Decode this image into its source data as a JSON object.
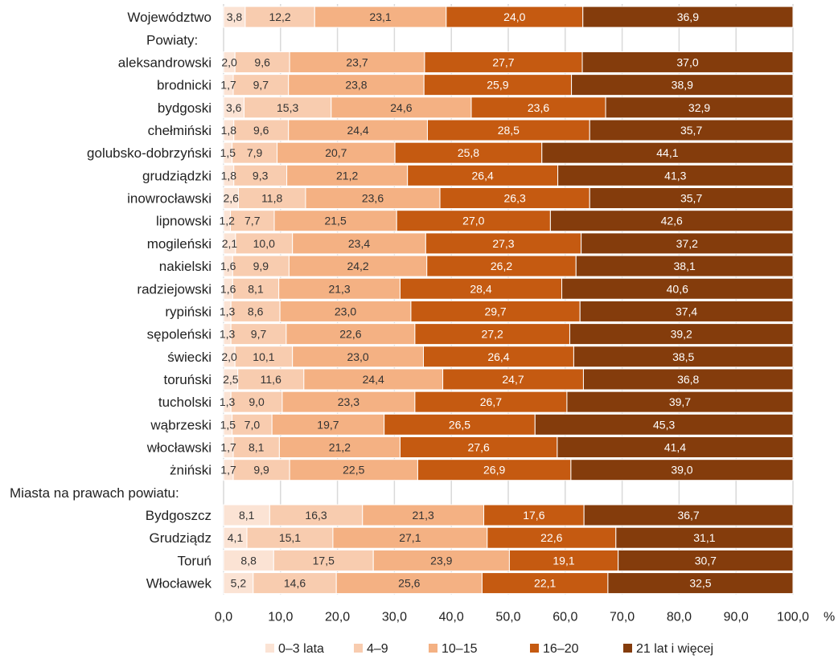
{
  "chart_data": {
    "type": "bar",
    "orientation": "horizontal",
    "stacked": true,
    "unit": "%",
    "xlim": [
      0,
      100
    ],
    "x_ticks": [
      "0,0",
      "10,0",
      "20,0",
      "30,0",
      "40,0",
      "50,0",
      "60,0",
      "70,0",
      "80,0",
      "90,0",
      "100,0"
    ],
    "grid": true,
    "legend_position": "bottom",
    "categories": [
      "Województwo",
      "Powiaty:",
      "aleksandrowski",
      "brodnicki",
      "bydgoski",
      "chełmiński",
      "golubsko-dobrzyński",
      "grudziądzki",
      "inowrocławski",
      "lipnowski",
      "mogileński",
      "nakielski",
      "radziejowski",
      "rypiński",
      "sępoleński",
      "świecki",
      "toruński",
      "tucholski",
      "wąbrzeski",
      "włocławski",
      "żniński",
      "Miasta na prawach powiatu:",
      "Bydgoszcz",
      "Grudziądz",
      "Toruń",
      "Włocławek"
    ],
    "category_alignment": [
      "right",
      "left",
      "right",
      "right",
      "right",
      "right",
      "right",
      "right",
      "right",
      "right",
      "right",
      "right",
      "right",
      "right",
      "right",
      "right",
      "right",
      "right",
      "right",
      "right",
      "right",
      "left",
      "right",
      "right",
      "right",
      "right"
    ],
    "series": [
      {
        "name": "0–3 lata",
        "color": "#fbe3d4",
        "values": [
          3.8,
          null,
          2.0,
          1.7,
          3.6,
          1.8,
          1.5,
          1.8,
          2.6,
          1.2,
          2.1,
          1.6,
          1.6,
          1.3,
          1.3,
          2.0,
          2.5,
          1.3,
          1.5,
          1.7,
          1.7,
          null,
          8.1,
          4.1,
          8.8,
          5.2
        ],
        "labels": [
          "3,8",
          "",
          "2,0",
          "1,7",
          "3,6",
          "1,8",
          "1,5",
          "1,8",
          "2,6",
          "1,2",
          "2,1",
          "1,6",
          "1,6",
          "1,3",
          "1,3",
          "2,0",
          "2,5",
          "1,3",
          "1,5",
          "1,7",
          "1,7",
          "",
          "8,1",
          "4,1",
          "8,8",
          "5,2"
        ]
      },
      {
        "name": "4–9",
        "color": "#f8ccaf",
        "values": [
          12.2,
          null,
          9.6,
          9.7,
          15.3,
          9.6,
          7.9,
          9.3,
          11.8,
          7.7,
          10.0,
          9.9,
          8.1,
          8.6,
          9.7,
          10.1,
          11.6,
          9.0,
          7.0,
          8.1,
          9.9,
          null,
          16.3,
          15.1,
          17.5,
          14.6
        ],
        "labels": [
          "12,2",
          "",
          "9,6",
          "9,7",
          "15,3",
          "9,6",
          "7,9",
          "9,3",
          "11,8",
          "7,7",
          "10,0",
          "9,9",
          "8,1",
          "8,6",
          "9,7",
          "10,1",
          "11,6",
          "9,0",
          "7,0",
          "8,1",
          "9,9",
          "",
          "16,3",
          "15,1",
          "17,5",
          "14,6"
        ]
      },
      {
        "name": "10–15",
        "color": "#f4b183",
        "values": [
          23.1,
          null,
          23.7,
          23.8,
          24.6,
          24.4,
          20.7,
          21.2,
          23.6,
          21.5,
          23.4,
          24.2,
          21.3,
          23.0,
          22.6,
          23.0,
          24.4,
          23.3,
          19.7,
          21.2,
          22.5,
          null,
          21.3,
          27.1,
          23.9,
          25.6
        ],
        "labels": [
          "23,1",
          "",
          "23,7",
          "23,8",
          "24,6",
          "24,4",
          "20,7",
          "21,2",
          "23,6",
          "21,5",
          "23,4",
          "24,2",
          "21,3",
          "23,0",
          "22,6",
          "23,0",
          "24,4",
          "23,3",
          "19,7",
          "21,2",
          "22,5",
          "",
          "21,3",
          "27,1",
          "23,9",
          "25,6"
        ]
      },
      {
        "name": "16–20",
        "color": "#c55a11",
        "values": [
          24.0,
          null,
          27.7,
          25.9,
          23.6,
          28.5,
          25.8,
          26.4,
          26.3,
          27.0,
          27.3,
          26.2,
          28.4,
          29.7,
          27.2,
          26.4,
          24.7,
          26.7,
          26.5,
          27.6,
          26.9,
          null,
          17.6,
          22.6,
          19.1,
          22.1
        ],
        "labels": [
          "24,0",
          "",
          "27,7",
          "25,9",
          "23,6",
          "28,5",
          "25,8",
          "26,4",
          "26,3",
          "27,0",
          "27,3",
          "26,2",
          "28,4",
          "29,7",
          "27,2",
          "26,4",
          "24,7",
          "26,7",
          "26,5",
          "27,6",
          "26,9",
          "",
          "17,6",
          "22,6",
          "19,1",
          "22,1"
        ]
      },
      {
        "name": "21 lat i więcej",
        "color": "#843c0c",
        "values": [
          36.9,
          null,
          37.0,
          38.9,
          32.9,
          35.7,
          44.1,
          41.3,
          35.7,
          42.6,
          37.2,
          38.1,
          40.6,
          37.4,
          39.2,
          38.5,
          36.8,
          39.7,
          45.3,
          41.4,
          39.0,
          null,
          36.7,
          31.1,
          30.7,
          32.5
        ],
        "labels": [
          "36,9",
          "",
          "37,0",
          "38,9",
          "32,9",
          "35,7",
          "44,1",
          "41,3",
          "35,7",
          "42,6",
          "37,2",
          "38,1",
          "40,6",
          "37,4",
          "39,2",
          "38,5",
          "36,8",
          "39,7",
          "45,3",
          "41,4",
          "39,0",
          "",
          "36,7",
          "31,1",
          "30,7",
          "32,5"
        ]
      }
    ],
    "label_colors": [
      "#333333",
      "#333333",
      "#333333",
      "#ffffff",
      "#ffffff"
    ]
  }
}
